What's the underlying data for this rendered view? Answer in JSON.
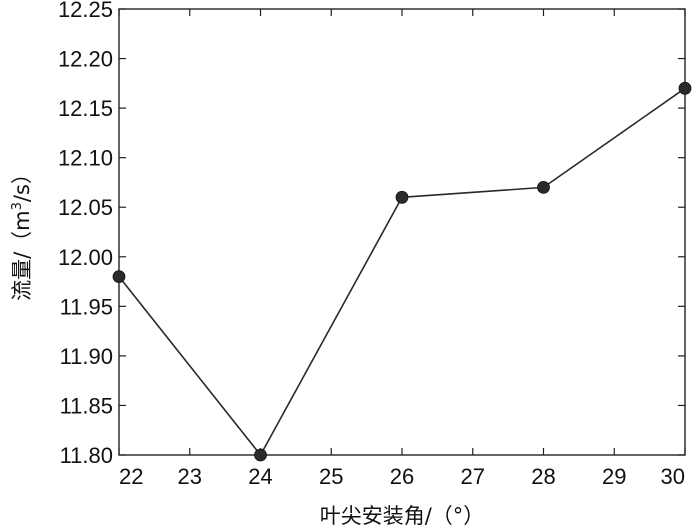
{
  "chart_data": {
    "type": "line",
    "title": "",
    "xlabel": "叶尖安装角/（°）",
    "ylabel_main": "流量/（m",
    "ylabel_sup": "3",
    "ylabel_tail": "/s）",
    "xlim": [
      22,
      30
    ],
    "ylim": [
      11.8,
      12.25
    ],
    "x_ticks": [
      22,
      23,
      24,
      25,
      26,
      27,
      28,
      29,
      30
    ],
    "y_ticks": [
      "11.80",
      "11.85",
      "11.90",
      "11.95",
      "12.00",
      "12.05",
      "12.10",
      "12.15",
      "12.20",
      "12.25"
    ],
    "grid": false,
    "series": [
      {
        "x": [
          22,
          24,
          26,
          28,
          30
        ],
        "y": [
          11.98,
          11.8,
          12.06,
          12.07,
          12.17
        ]
      }
    ],
    "colors": {
      "line": "#2a2a2a",
      "marker": "#2a2a2a"
    }
  }
}
